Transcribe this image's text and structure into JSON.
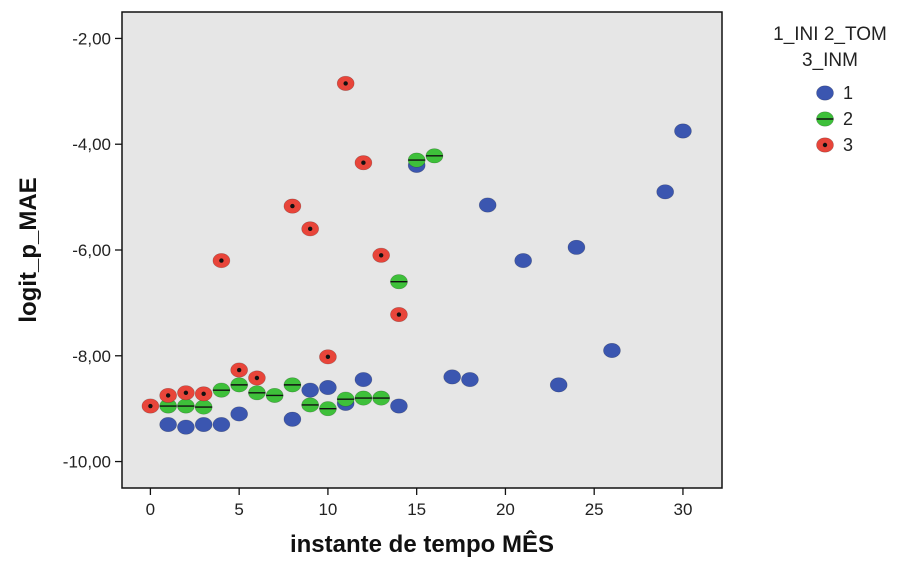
{
  "chart_data": {
    "type": "scatter",
    "xlabel": "instante de tempo MÊS",
    "ylabel": "logit_p_MAE",
    "xlim": [
      -1.6,
      32.2
    ],
    "ylim": [
      -10.5,
      -1.5
    ],
    "x_ticks": [
      0,
      5,
      10,
      15,
      20,
      25,
      30
    ],
    "x_tick_labels": [
      "0",
      "5",
      "10",
      "15",
      "20",
      "25",
      "30"
    ],
    "y_ticks": [
      -2,
      -4,
      -6,
      -8,
      -10
    ],
    "y_tick_labels": [
      "-2,00",
      "-4,00",
      "-6,00",
      "-8,00",
      "-10,00"
    ],
    "grid": false,
    "legend": {
      "title_lines": [
        "1_INI 2_TOM",
        "3_INM"
      ],
      "placement": "right"
    },
    "series": [
      {
        "name": "1",
        "color": "#3b56b0",
        "marker": "circle",
        "points": [
          [
            1,
            -9.3
          ],
          [
            2,
            -9.35
          ],
          [
            3,
            -9.3
          ],
          [
            4,
            -9.3
          ],
          [
            5,
            -9.1
          ],
          [
            8,
            -9.2
          ],
          [
            9,
            -8.65
          ],
          [
            10,
            -8.6
          ],
          [
            11,
            -8.9
          ],
          [
            12,
            -8.45
          ],
          [
            14,
            -8.95
          ],
          [
            15,
            -4.4
          ],
          [
            17,
            -8.4
          ],
          [
            18,
            -8.45
          ],
          [
            19,
            -5.15
          ],
          [
            21,
            -6.2
          ],
          [
            23,
            -8.55
          ],
          [
            24,
            -5.95
          ],
          [
            26,
            -7.9
          ],
          [
            29,
            -4.9
          ],
          [
            30,
            -3.75
          ]
        ]
      },
      {
        "name": "2",
        "color": "#3ec03a",
        "marker": "circle-dash",
        "points": [
          [
            1,
            -8.95
          ],
          [
            2,
            -8.95
          ],
          [
            3,
            -8.97
          ],
          [
            4,
            -8.65
          ],
          [
            5,
            -8.55
          ],
          [
            6,
            -8.7
          ],
          [
            7,
            -8.75
          ],
          [
            8,
            -8.55
          ],
          [
            9,
            -8.93
          ],
          [
            10,
            -9.0
          ],
          [
            11,
            -8.82
          ],
          [
            12,
            -8.8
          ],
          [
            13,
            -8.8
          ],
          [
            14,
            -6.6
          ],
          [
            15,
            -4.3
          ],
          [
            16,
            -4.22
          ]
        ]
      },
      {
        "name": "3",
        "color": "#e8453a",
        "marker": "circle-dot",
        "points": [
          [
            0,
            -8.95
          ],
          [
            1,
            -8.75
          ],
          [
            2,
            -8.7
          ],
          [
            3,
            -8.72
          ],
          [
            4,
            -6.2
          ],
          [
            5,
            -8.27
          ],
          [
            6,
            -8.42
          ],
          [
            8,
            -5.17
          ],
          [
            9,
            -5.6
          ],
          [
            10,
            -8.02
          ],
          [
            11,
            -2.85
          ],
          [
            12,
            -4.35
          ],
          [
            13,
            -6.1
          ],
          [
            14,
            -7.22
          ]
        ]
      }
    ]
  }
}
